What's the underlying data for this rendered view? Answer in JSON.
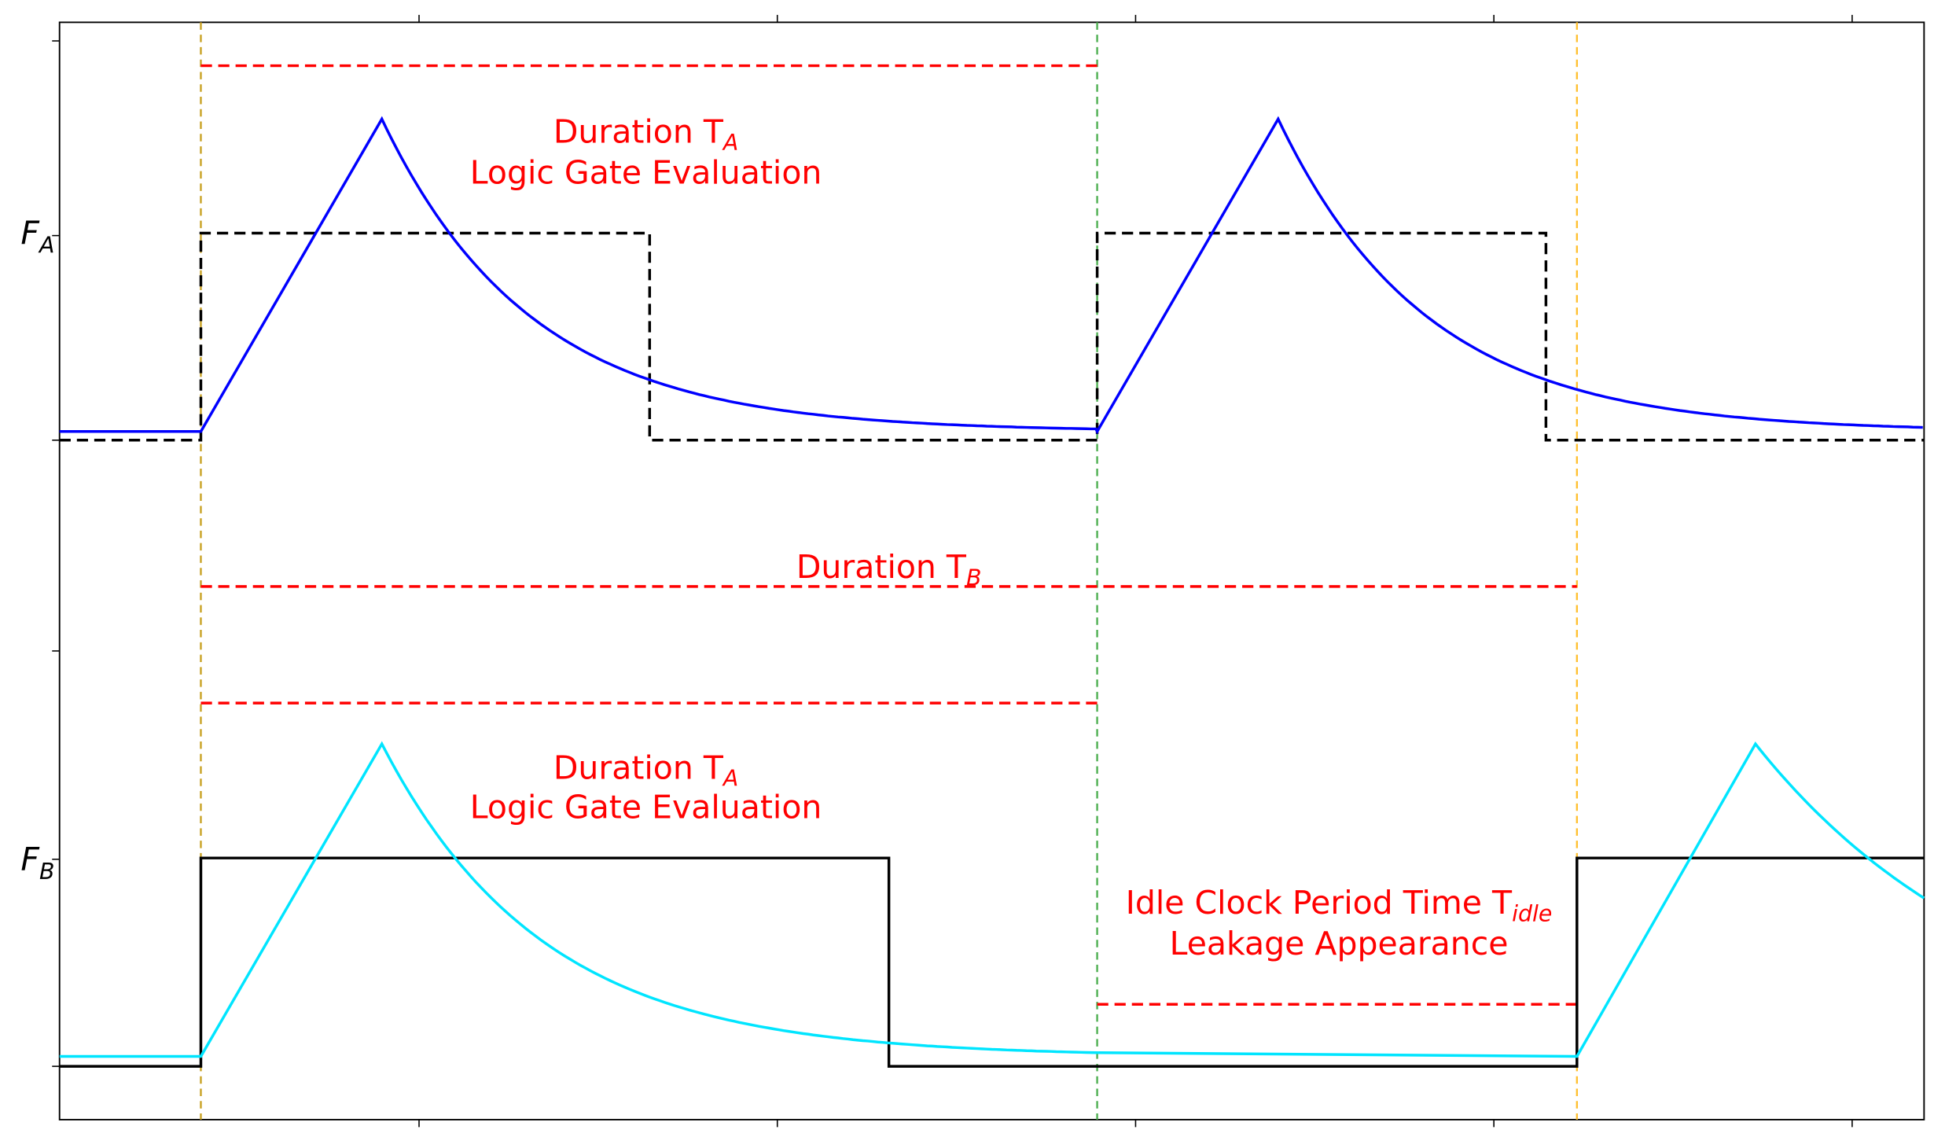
{
  "y_labels": [
    {
      "main": "F",
      "sub": "A"
    },
    {
      "main": "F",
      "sub": "B"
    }
  ],
  "annotations": [
    {
      "main": "Duration T",
      "sub": "A",
      "line2": "Logic Gate Evaluation"
    },
    {
      "main": "Duration T",
      "sub": "B"
    },
    {
      "main": "Duration T",
      "sub": "A",
      "line2": "Logic Gate Evaluation"
    },
    {
      "main": "Idle Clock Period Time T",
      "sub": "idle",
      "line2": "Leakage Appearance"
    }
  ]
}
